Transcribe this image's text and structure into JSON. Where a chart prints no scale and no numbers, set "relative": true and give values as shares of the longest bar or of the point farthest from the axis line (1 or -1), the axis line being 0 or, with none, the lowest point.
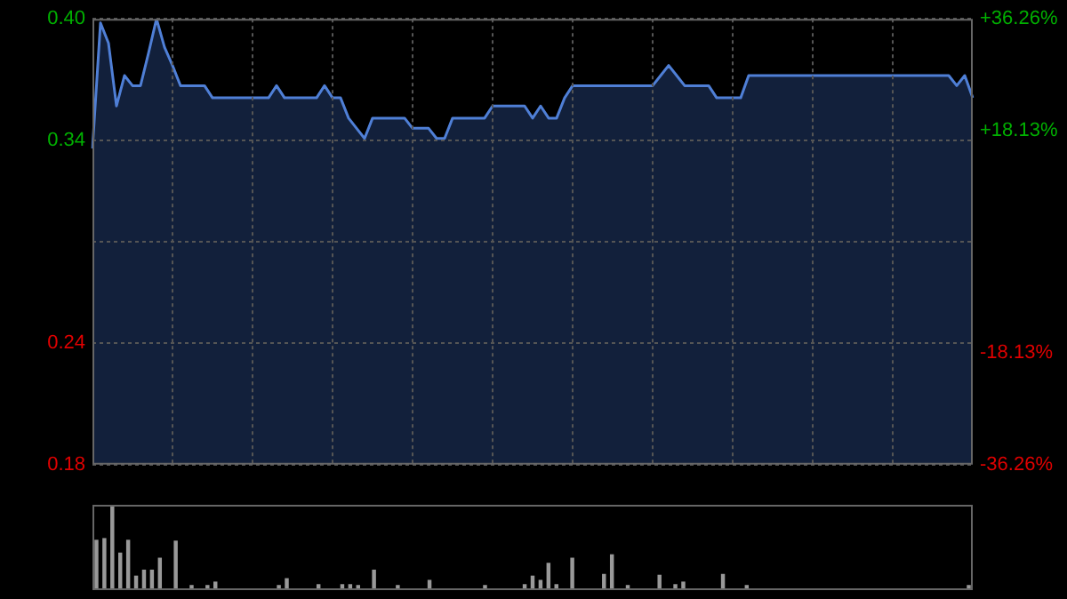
{
  "chart_data": [
    {
      "type": "area",
      "categories": [
        null,
        null,
        null,
        null,
        null,
        null,
        null,
        null,
        null,
        null,
        null,
        null,
        null,
        null,
        null,
        null,
        null,
        null,
        null,
        null,
        null,
        null,
        null,
        null,
        null,
        null,
        null,
        null,
        null,
        null,
        null,
        null,
        null,
        null,
        null,
        null,
        null,
        null,
        null,
        null,
        null,
        null,
        null,
        null,
        null,
        null,
        null,
        null,
        null,
        null,
        null,
        null,
        null,
        null,
        null,
        null,
        null,
        null,
        null,
        null,
        null,
        null,
        null,
        null,
        null,
        null,
        null,
        null,
        null,
        null,
        null,
        null,
        null,
        null,
        null,
        null,
        null,
        null,
        null,
        null,
        null,
        null,
        null,
        null,
        null,
        null,
        null,
        null,
        null,
        null,
        null,
        null,
        null,
        null,
        null,
        null,
        null,
        null,
        null,
        null,
        null,
        null,
        null,
        null,
        null,
        null,
        null,
        null,
        null,
        null,
        null
      ],
      "series": [
        {
          "color": "#4f7fd6",
          "values": [
            0.336,
            0.398,
            0.388,
            0.357,
            0.372,
            0.367,
            0.367,
            0.383,
            0.4,
            0.386,
            0.377,
            0.367,
            0.367,
            0.367,
            0.367,
            0.361,
            0.361,
            0.361,
            0.361,
            0.361,
            0.361,
            0.361,
            0.361,
            0.367,
            0.361,
            0.361,
            0.361,
            0.361,
            0.361,
            0.367,
            0.361,
            0.361,
            0.351,
            0.346,
            0.341,
            0.351,
            0.351,
            0.351,
            0.351,
            0.351,
            0.346,
            0.346,
            0.346,
            0.341,
            0.341,
            0.351,
            0.351,
            0.351,
            0.351,
            0.351,
            0.357,
            0.357,
            0.357,
            0.357,
            0.357,
            0.351,
            0.357,
            0.351,
            0.351,
            0.361,
            0.367,
            0.367,
            0.367,
            0.367,
            0.367,
            0.367,
            0.367,
            0.367,
            0.367,
            0.367,
            0.367,
            0.372,
            0.377,
            0.372,
            0.367,
            0.367,
            0.367,
            0.367,
            0.361,
            0.361,
            0.361,
            0.361,
            0.372,
            0.372,
            0.372,
            0.372,
            0.372,
            0.372,
            0.372,
            0.372,
            0.372,
            0.372,
            0.372,
            0.372,
            0.372,
            0.372,
            0.372,
            0.372,
            0.372,
            0.372,
            0.372,
            0.372,
            0.372,
            0.372,
            0.372,
            0.372,
            0.372,
            0.372,
            0.367,
            0.372,
            0.361
          ]
        }
      ],
      "ylim": [
        0.18,
        0.4
      ],
      "yticks": [
        {
          "value": 0.4,
          "label": "0.40"
        },
        {
          "value": 0.34,
          "label": "0.34"
        },
        {
          "value": 0.29,
          "label": null
        },
        {
          "value": 0.24,
          "label": "0.24"
        },
        {
          "value": 0.18,
          "label": "0.18"
        }
      ],
      "y2lim": [
        -36.26,
        36.26
      ],
      "y2ticks": [
        {
          "value": 36.26,
          "label": "+36.26%"
        },
        {
          "value": 18.13,
          "label": "+18.13%"
        },
        {
          "value": -18.13,
          "label": "-18.13%"
        },
        {
          "value": -36.26,
          "label": "-36.26%"
        }
      ],
      "grid": true,
      "tick_labels": "y",
      "legend": false
    },
    {
      "type": "bar",
      "relative": true,
      "tick_labels": false,
      "categories": [
        null,
        null,
        null,
        null,
        null,
        null,
        null,
        null,
        null,
        null,
        null,
        null,
        null,
        null,
        null,
        null,
        null,
        null,
        null,
        null,
        null,
        null,
        null,
        null,
        null,
        null,
        null,
        null,
        null,
        null,
        null,
        null,
        null,
        null,
        null,
        null,
        null,
        null,
        null,
        null,
        null,
        null,
        null,
        null,
        null,
        null,
        null,
        null,
        null,
        null,
        null,
        null,
        null,
        null,
        null,
        null,
        null,
        null,
        null,
        null,
        null,
        null,
        null,
        null,
        null,
        null,
        null,
        null,
        null,
        null,
        null,
        null,
        null,
        null,
        null,
        null,
        null,
        null,
        null,
        null,
        null,
        null,
        null,
        null,
        null,
        null,
        null,
        null,
        null,
        null,
        null,
        null,
        null,
        null,
        null,
        null,
        null,
        null,
        null,
        null,
        null,
        null,
        null,
        null,
        null,
        null,
        null,
        null,
        null,
        null,
        null
      ],
      "series": [
        {
          "color": "#999999",
          "values": [
            0.59,
            0.61,
            1.0,
            0.44,
            0.59,
            0.17,
            0.24,
            0.24,
            0.38,
            null,
            0.58,
            null,
            0.06,
            null,
            0.06,
            0.1,
            null,
            null,
            null,
            null,
            null,
            null,
            null,
            0.06,
            0.14,
            null,
            null,
            null,
            0.07,
            null,
            null,
            0.07,
            0.07,
            0.06,
            null,
            0.24,
            null,
            null,
            0.06,
            null,
            null,
            null,
            0.12,
            null,
            null,
            null,
            null,
            null,
            null,
            0.06,
            null,
            null,
            null,
            null,
            0.07,
            0.17,
            0.12,
            0.32,
            0.07,
            null,
            0.38,
            null,
            null,
            null,
            0.19,
            0.42,
            null,
            0.06,
            null,
            null,
            null,
            0.18,
            null,
            0.07,
            0.1,
            null,
            null,
            null,
            null,
            0.19,
            null,
            null,
            0.06,
            null,
            null,
            null,
            null,
            null,
            null,
            null,
            null,
            null,
            null,
            null,
            null,
            null,
            null,
            null,
            null,
            null,
            null,
            null,
            null,
            null,
            null,
            null,
            null,
            null,
            null,
            null,
            0.06
          ]
        }
      ],
      "grid": false,
      "legend": false
    }
  ]
}
